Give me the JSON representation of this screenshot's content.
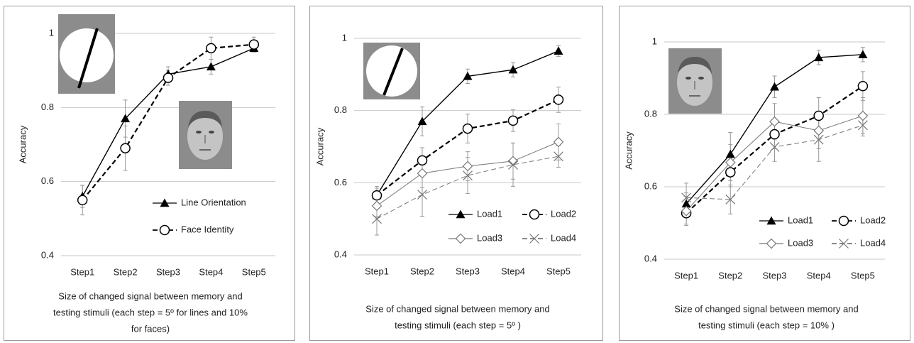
{
  "chart_data": [
    {
      "type": "line",
      "ylabel": "Accuracy",
      "xlabel": [
        "Size of changed signal between memory and",
        "testing stimuli (each step = 5º for lines and 10%",
        "for faces)"
      ],
      "categories": [
        "Step1",
        "Step2",
        "Step3",
        "Step4",
        "Step5"
      ],
      "ylim": [
        0.4,
        1
      ],
      "yticks": [
        0.4,
        0.6,
        0.8,
        1
      ],
      "grid": true,
      "legend": "lower right",
      "legend_columns": 1,
      "series": [
        {
          "name": "Line Orientation",
          "color": "#000000",
          "marker": "triangle",
          "line_style": "solid",
          "values": [
            0.56,
            0.77,
            0.89,
            0.91,
            0.96
          ],
          "errors": [
            0.03,
            0.05,
            0.02,
            0.02,
            0.01
          ]
        },
        {
          "name": "Face Identity",
          "color": "#000000",
          "marker": "circle",
          "line_style": "dashed",
          "values": [
            0.55,
            0.69,
            0.88,
            0.96,
            0.97
          ],
          "errors": [
            0.04,
            0.06,
            0.02,
            0.03,
            0.02
          ]
        }
      ]
    },
    {
      "type": "line",
      "ylabel": "Accuracy",
      "xlabel": [
        "Size of changed signal between memory and",
        "testing stimuli (each step = 5º )"
      ],
      "categories": [
        "Step1",
        "Step2",
        "Step3",
        "Step4",
        "Step5"
      ],
      "ylim": [
        0.4,
        1
      ],
      "yticks": [
        0.4,
        0.6,
        0.8,
        1
      ],
      "grid": true,
      "legend": "lower center",
      "legend_columns": 2,
      "series": [
        {
          "name": "Load1",
          "color": "#000000",
          "marker": "triangle",
          "line_style": "solid",
          "values": [
            0.565,
            0.77,
            0.895,
            0.913,
            0.965
          ],
          "errors": [
            0.02,
            0.04,
            0.02,
            0.02,
            0.015
          ]
        },
        {
          "name": "Load2",
          "color": "#000000",
          "marker": "circle",
          "line_style": "dashed",
          "values": [
            0.565,
            0.662,
            0.75,
            0.772,
            0.83
          ],
          "errors": [
            0.025,
            0.035,
            0.04,
            0.03,
            0.035
          ]
        },
        {
          "name": "Load3",
          "color": "#777777",
          "marker": "diamond",
          "line_style": "solid",
          "values": [
            0.536,
            0.626,
            0.646,
            0.66,
            0.713
          ],
          "errors": [
            0.03,
            0.04,
            0.04,
            0.05,
            0.05
          ]
        },
        {
          "name": "Load4",
          "color": "#777777",
          "marker": "x",
          "line_style": "dashed",
          "values": [
            0.5,
            0.567,
            0.62,
            0.65,
            0.673
          ],
          "errors": [
            0.045,
            0.06,
            0.05,
            0.06,
            0.03
          ]
        }
      ]
    },
    {
      "type": "line",
      "ylabel": "Accuracy",
      "xlabel": [
        "Size of changed signal between memory and",
        "testing stimuli (each step = 10% )"
      ],
      "categories": [
        "Step1",
        "Step2",
        "Step3",
        "Step4",
        "Step5"
      ],
      "ylim": [
        0.4,
        1
      ],
      "yticks": [
        0.4,
        0.6,
        0.8,
        1
      ],
      "grid": true,
      "legend": "lower center",
      "legend_columns": 2,
      "series": [
        {
          "name": "Load1",
          "color": "#000000",
          "marker": "triangle",
          "line_style": "solid",
          "values": [
            0.553,
            0.69,
            0.876,
            0.957,
            0.965
          ],
          "errors": [
            0.03,
            0.06,
            0.03,
            0.02,
            0.02
          ]
        },
        {
          "name": "Load2",
          "color": "#000000",
          "marker": "circle",
          "line_style": "dashed",
          "values": [
            0.527,
            0.64,
            0.745,
            0.796,
            0.878
          ],
          "errors": [
            0.03,
            0.04,
            0.04,
            0.05,
            0.04
          ]
        },
        {
          "name": "Load3",
          "color": "#777777",
          "marker": "diamond",
          "line_style": "solid",
          "values": [
            0.533,
            0.667,
            0.78,
            0.755,
            0.796
          ],
          "errors": [
            0.04,
            0.05,
            0.05,
            0.05,
            0.05
          ]
        },
        {
          "name": "Load4",
          "color": "#777777",
          "marker": "x",
          "line_style": "dashed",
          "values": [
            0.57,
            0.565,
            0.71,
            0.73,
            0.77
          ],
          "errors": [
            0.04,
            0.04,
            0.04,
            0.06,
            0.03
          ]
        }
      ]
    }
  ]
}
